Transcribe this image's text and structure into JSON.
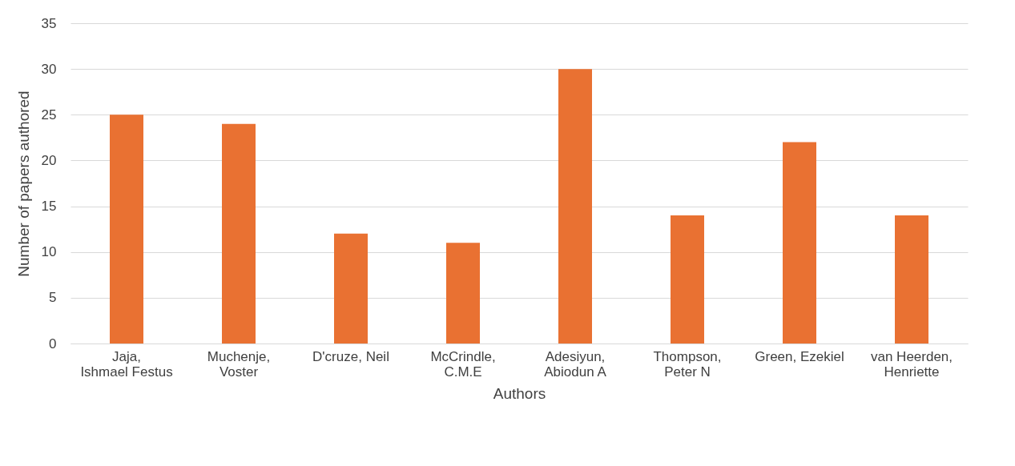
{
  "chart_data": {
    "type": "bar",
    "xlabel": "Authors",
    "ylabel": "Number of papers authored",
    "categories": [
      "Jaja, Ishmael Festus",
      "Muchenje, Voster",
      "D'cruze, Neil",
      "McCrindle, C.M.E",
      "Adesiyun, Abiodun A",
      "Thompson, Peter N",
      "Green, Ezekiel",
      "van Heerden, Henriette"
    ],
    "values": [
      25,
      24,
      12,
      11,
      30,
      14,
      22,
      14
    ],
    "color": "#e97132",
    "ylim": [
      0,
      35
    ],
    "yticks": [
      0,
      5,
      10,
      15,
      20,
      25,
      30,
      35
    ],
    "grid": "y"
  }
}
